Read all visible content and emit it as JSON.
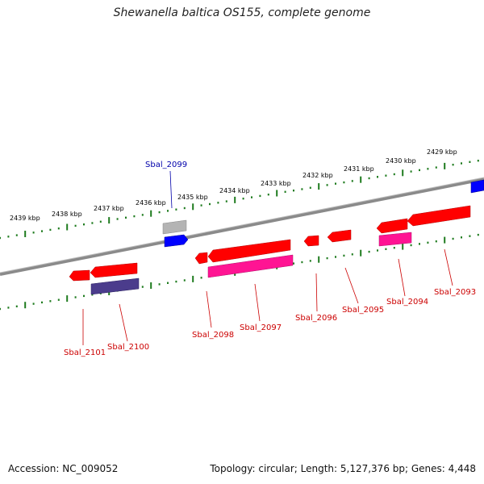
{
  "title": "Shewanella baltica OS155, complete genome",
  "accession": "Accession: NC_009052",
  "topology": "Topology: circular; Length: 5,127,376 bp; Genes: 4,448",
  "colors": {
    "backbone": "#808080",
    "ticks": "#1e7b1e",
    "cds": "#ff0000",
    "cds_alt": "#ff1493",
    "blue": "#0000ff",
    "gray": "#b4b4b4",
    "purple": "#4b3c8c",
    "label_red": "#cc0000",
    "label_blue": "#0000aa"
  },
  "kbp_labels": [
    "2439 kbp",
    "2438 kbp",
    "2437 kbp",
    "2436 kbp",
    "2435 kbp",
    "2434 kbp",
    "2433 kbp",
    "2432 kbp",
    "2431 kbp",
    "2430 kbp",
    "2429 kbp"
  ],
  "genes": [
    {
      "label": "Sbal_2101",
      "color": "red"
    },
    {
      "label": "Sbal_2100",
      "color": "red"
    },
    {
      "label": "Sbal_2099",
      "color": "blue"
    },
    {
      "label": "Sbal_2098",
      "color": "red"
    },
    {
      "label": "Sbal_2097",
      "color": "red"
    },
    {
      "label": "Sbal_2096",
      "color": "red"
    },
    {
      "label": "Sbal_2095",
      "color": "red"
    },
    {
      "label": "Sbal_2094",
      "color": "red"
    },
    {
      "label": "Sbal_2093",
      "color": "red"
    }
  ]
}
